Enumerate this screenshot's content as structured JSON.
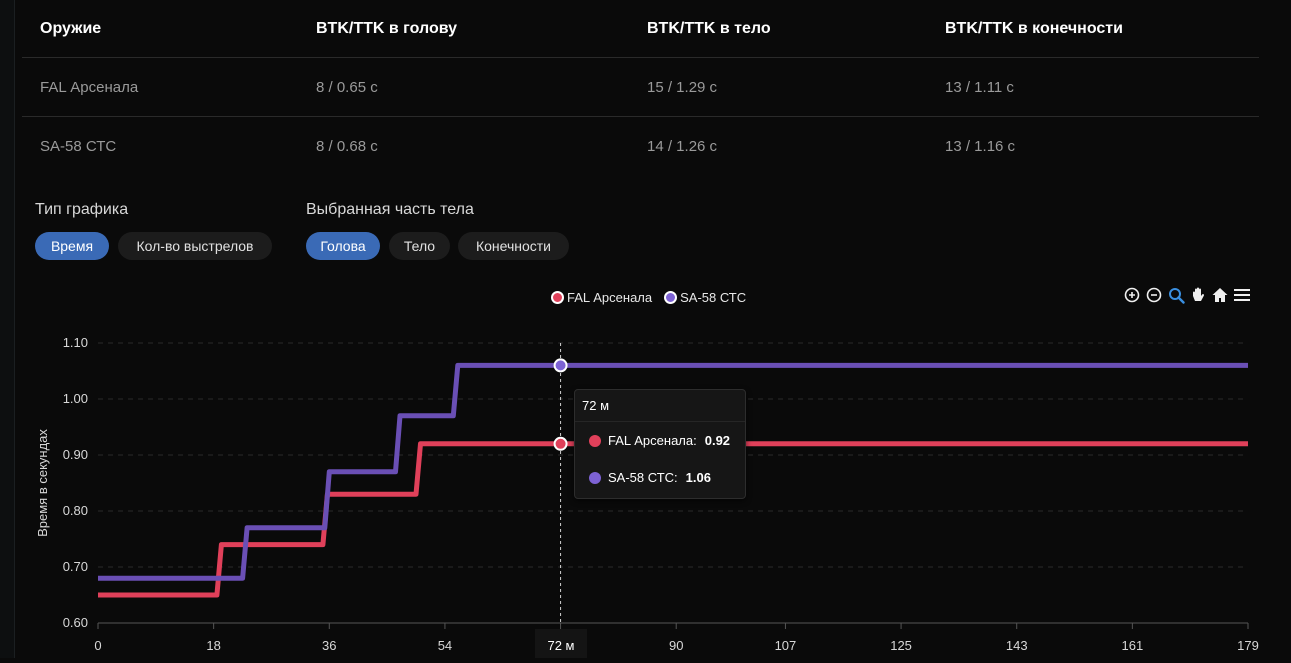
{
  "table": {
    "headers": [
      "Оружие",
      "BTK/TTK в голову",
      "BTK/TTK в тело",
      "BTK/TTK в конечности"
    ],
    "rows": [
      [
        "FAL Арсенала",
        "8 / 0.65 с",
        "15 / 1.29 с",
        "13 / 1.11 с"
      ],
      [
        "SA-58 СТС",
        "8 / 0.68 с",
        "14 / 1.26 с",
        "13 / 1.16 с"
      ]
    ]
  },
  "controls": {
    "chart_type_label": "Тип графика",
    "chart_type_options": [
      "Время",
      "Кол-во выстрелов"
    ],
    "chart_type_selected": "Время",
    "body_part_label": "Выбранная часть тела",
    "body_part_options": [
      "Голова",
      "Тело",
      "Конечности"
    ],
    "body_part_selected": "Голова"
  },
  "toolbar": {
    "icons": [
      "zoom-in-icon",
      "zoom-out-icon",
      "zoom-selection-icon",
      "pan-hand-icon",
      "home-reset-icon",
      "menu-icon"
    ]
  },
  "tooltip": {
    "title": "72 м",
    "rows": [
      {
        "name": "FAL Арсенала:",
        "value": "0.92"
      },
      {
        "name": "SA-58 СТС:",
        "value": "1.06"
      }
    ]
  },
  "crosshair_label": "72 м",
  "colors": {
    "fal": "#e0405a",
    "sa58": "#6a4fb5",
    "sa58_dot": "#7d62d4",
    "active": "#3a6ab6"
  },
  "chart_data": {
    "type": "line",
    "step": true,
    "ylabel": "Время в секундах",
    "xlabel": "",
    "xlim": [
      0,
      179
    ],
    "ylim": [
      0.6,
      1.1
    ],
    "x_ticks": [
      0,
      18,
      36,
      54,
      72,
      90,
      107,
      125,
      143,
      161,
      179
    ],
    "x_tick_labels": [
      "0",
      "18",
      "36",
      "54",
      "",
      "90",
      "107",
      "125",
      "143",
      "161",
      "179"
    ],
    "y_ticks": [
      0.6,
      0.7,
      0.8,
      0.9,
      1.0,
      1.1
    ],
    "y_tick_labels": [
      "0.60",
      "0.70",
      "0.80",
      "0.90",
      "1.00",
      "1.10"
    ],
    "cursor_x": 72,
    "series": [
      {
        "name": "FAL Арсенала",
        "color": "#e0405a",
        "points": [
          [
            0,
            0.65
          ],
          [
            18.5,
            0.65
          ],
          [
            19.2,
            0.74
          ],
          [
            35,
            0.74
          ],
          [
            35.7,
            0.83
          ],
          [
            49.5,
            0.83
          ],
          [
            50.2,
            0.92
          ],
          [
            179,
            0.92
          ]
        ]
      },
      {
        "name": "SA-58 СТС",
        "color": "#6a4fb5",
        "points": [
          [
            0,
            0.68
          ],
          [
            22.5,
            0.68
          ],
          [
            23.2,
            0.77
          ],
          [
            35.3,
            0.77
          ],
          [
            36,
            0.87
          ],
          [
            46.3,
            0.87
          ],
          [
            47,
            0.97
          ],
          [
            55.3,
            0.97
          ],
          [
            56,
            1.06
          ],
          [
            179,
            1.06
          ]
        ]
      }
    ]
  }
}
